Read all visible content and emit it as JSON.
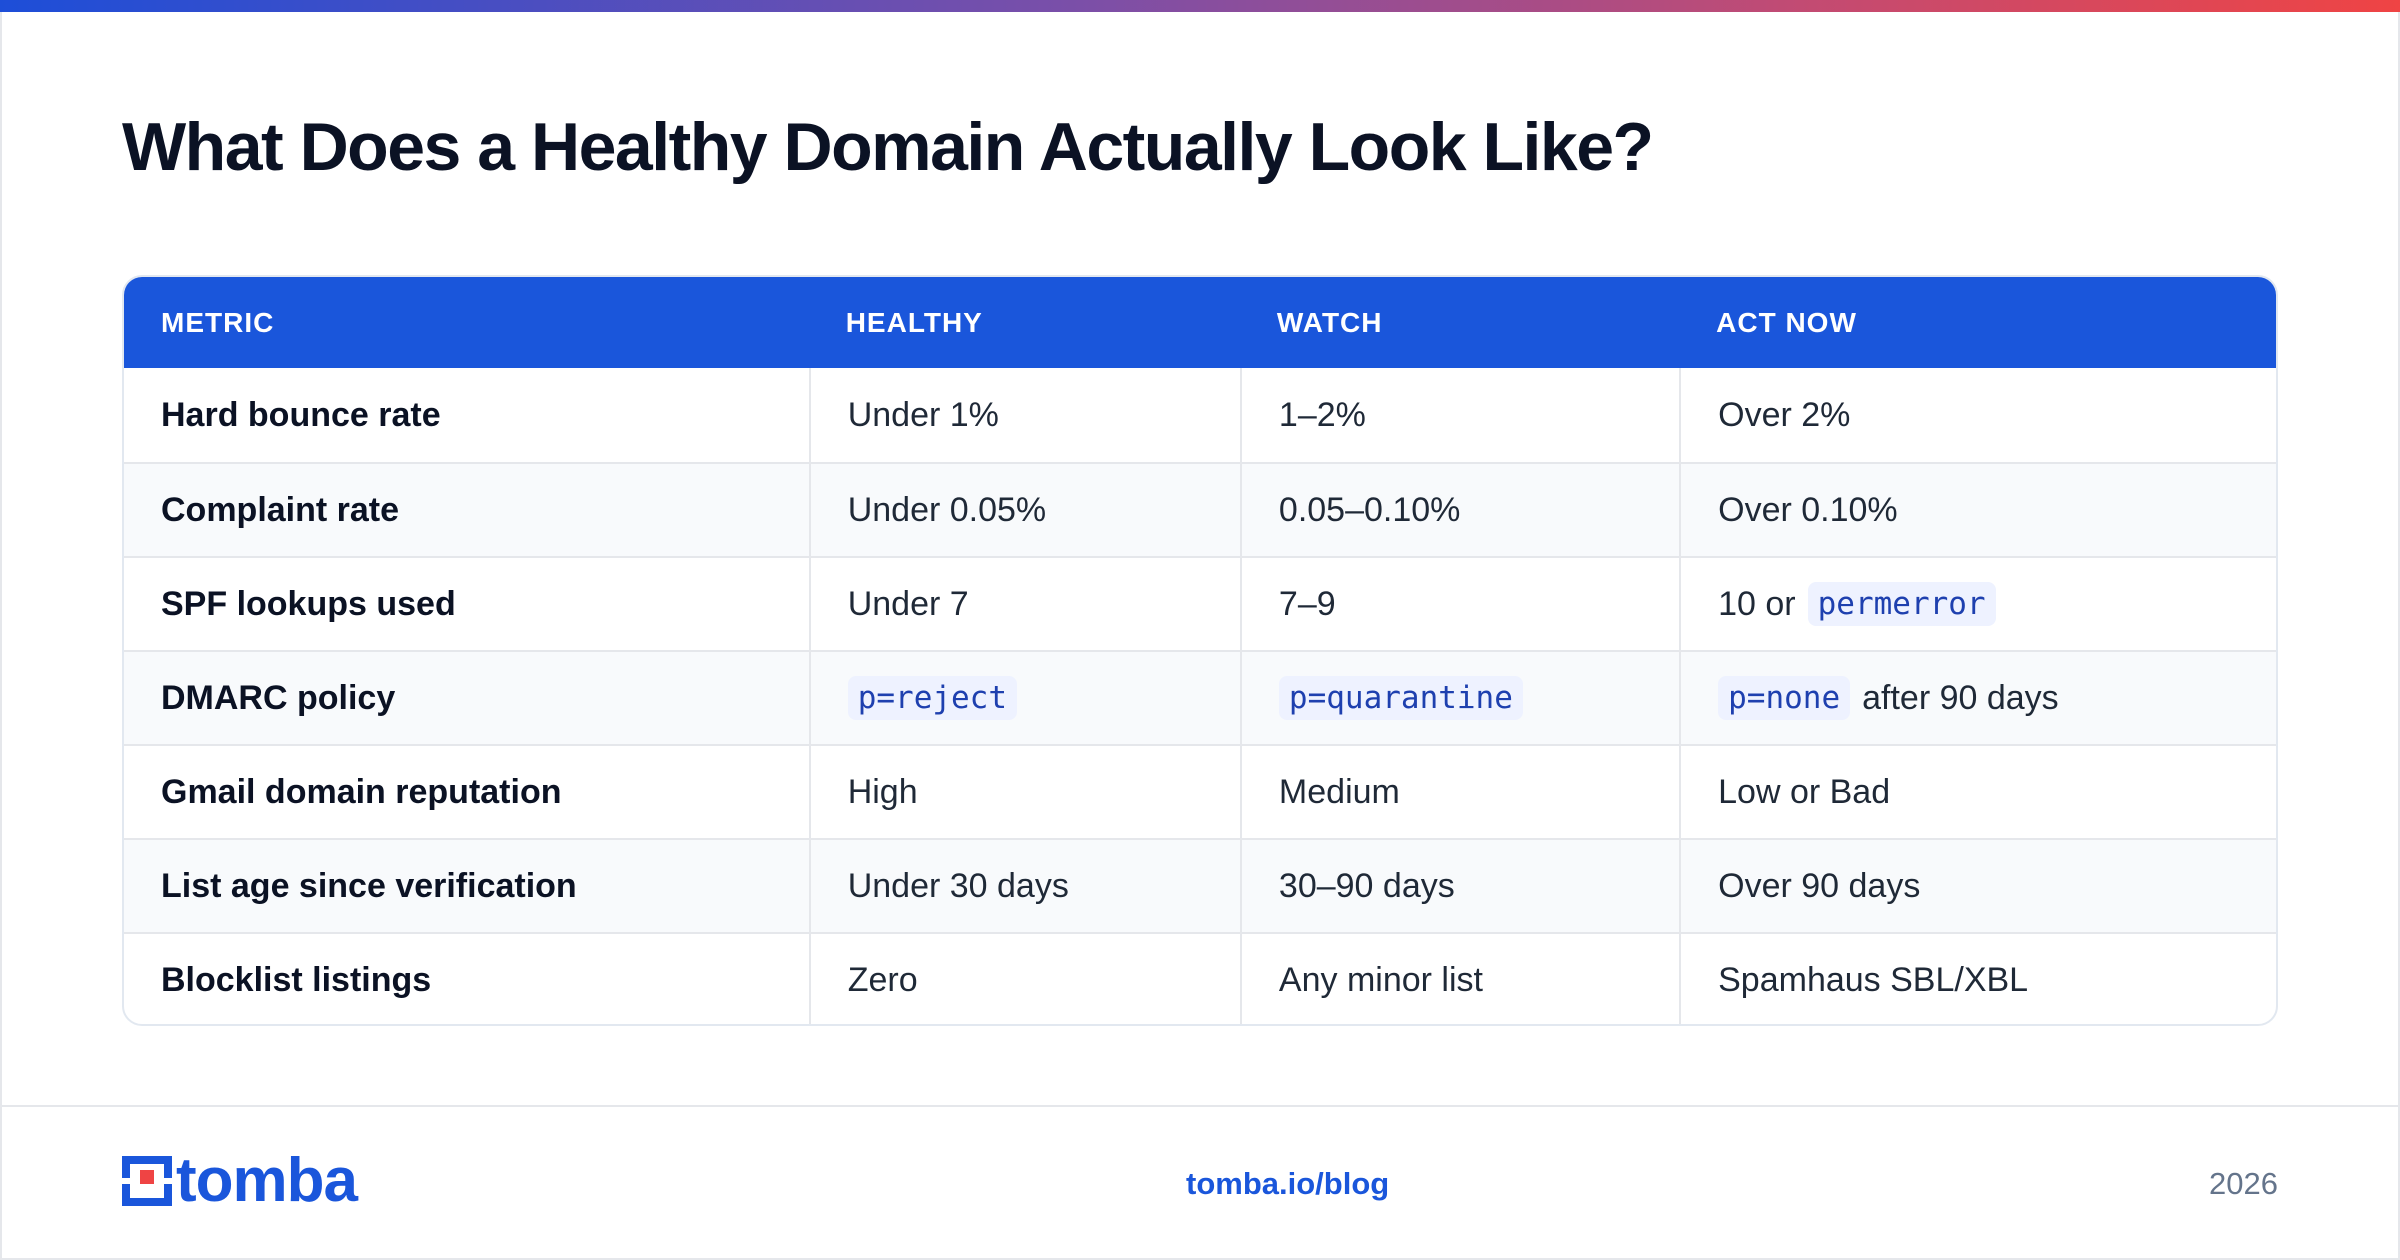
{
  "title": "What Does a Healthy Domain Actually Look Like?",
  "table": {
    "headers": [
      "METRIC",
      "HEALTHY",
      "WATCH",
      "ACT NOW"
    ],
    "rows": [
      {
        "metric": "Hard bounce rate",
        "healthy": "Under 1%",
        "watch": "1–2%",
        "act_now": "Over 2%"
      },
      {
        "metric": "Complaint rate",
        "healthy": "Under 0.05%",
        "watch": "0.05–0.10%",
        "act_now": "Over 0.10%"
      },
      {
        "metric": "SPF lookups used",
        "healthy": "Under 7",
        "watch": "7–9",
        "act_now_prefix": "10 or",
        "act_now_code": "permerror"
      },
      {
        "metric": "DMARC policy",
        "healthy_code": "p=reject",
        "watch_code": "p=quarantine",
        "act_now_code": "p=none",
        "act_now_suffix": "after 90 days"
      },
      {
        "metric": "Gmail domain reputation",
        "healthy": "High",
        "watch": "Medium",
        "act_now": "Low or Bad"
      },
      {
        "metric": "List age since verification",
        "healthy": "Under 30 days",
        "watch": "30–90 days",
        "act_now": "Over 90 days"
      },
      {
        "metric": "Blocklist listings",
        "healthy": "Zero",
        "watch": "Any minor list",
        "act_now": "Spamhaus SBL/XBL"
      }
    ]
  },
  "footer": {
    "logo_text": "tomba",
    "link": "tomba.io/blog",
    "year": "2026"
  },
  "colors": {
    "accent": "#1a56db",
    "code_text": "#1e40af",
    "code_bg": "#eef2ff",
    "gradient": [
      "#1d4ed8",
      "#ef4444"
    ]
  },
  "icons": {
    "logo": "tomba-logo-icon"
  }
}
